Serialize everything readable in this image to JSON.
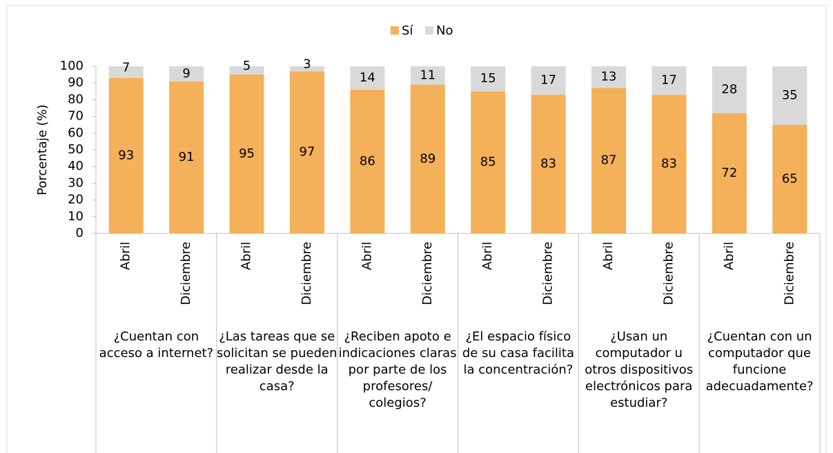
{
  "chart_data": {
    "type": "stacked_bar",
    "y_label": "Porcentaje (%)",
    "categories": [
      "Abril",
      "Diciembre",
      "Abril",
      "Diciembre",
      "Abril",
      "Diciembre",
      "Abril",
      "Diciembre",
      "Abril",
      "Diciembre",
      "Abril",
      "Diciembre"
    ],
    "groups": [
      "¿Cuentan con acceso a internet?",
      "¿Las tareas que se solicitan se pueden realizar desde la casa?",
      "¿Reciben apoto e indicaciones claras por parte de los profesores/ colegios?",
      "¿El espacio físico de su casa facilita la concentración?",
      "¿Usan un computador u otros dispositivos electrónicos para estudiar?",
      "¿Cuentan con un computador que funcione adecuadamente?"
    ],
    "series": [
      {
        "name": "Sí",
        "color": "#f5b05a",
        "values": [
          93,
          91,
          95,
          97,
          86,
          89,
          85,
          83,
          87,
          83,
          72,
          65
        ]
      },
      {
        "name": "No",
        "color": "#d9d9d9",
        "values": [
          7,
          9,
          5,
          3,
          14,
          11,
          15,
          17,
          13,
          17,
          28,
          35
        ]
      }
    ],
    "ylim": [
      0,
      100
    ],
    "yticks": [
      0,
      10,
      20,
      30,
      40,
      50,
      60,
      70,
      80,
      90,
      100
    ],
    "legend": "top",
    "grid": false
  }
}
